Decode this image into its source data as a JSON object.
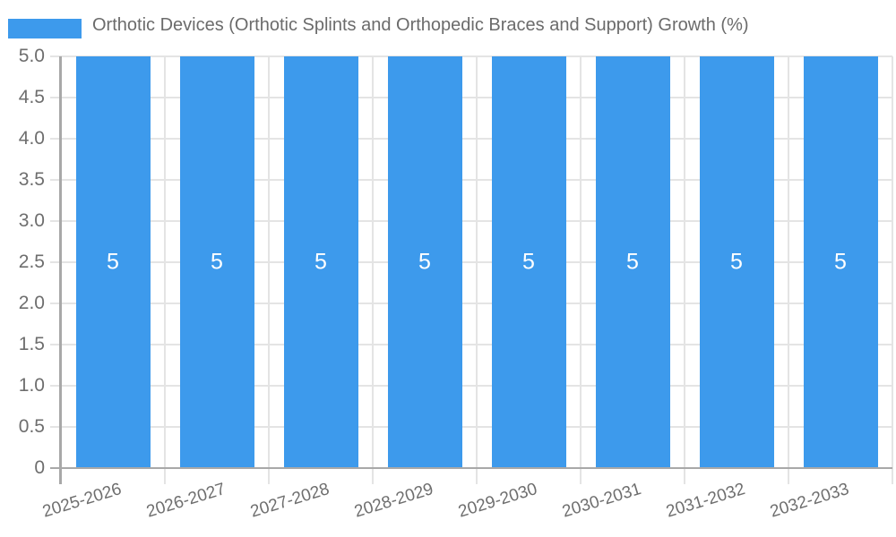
{
  "chart_data": {
    "type": "bar",
    "title": "Orthotic Devices (Orthotic Splints and Orthopedic Braces and Support) Growth (%)",
    "categories": [
      "2025-2026",
      "2026-2027",
      "2027-2028",
      "2028-2029",
      "2029-2030",
      "2030-2031",
      "2031-2032",
      "2032-2033"
    ],
    "series": [
      {
        "name": "Orthotic Devices (Orthotic Splints and Orthopedic Braces and Support) Growth (%)",
        "values": [
          5,
          5,
          5,
          5,
          5,
          5,
          5,
          5
        ],
        "value_labels": [
          "5",
          "5",
          "5",
          "5",
          "5",
          "5",
          "5",
          "5"
        ]
      }
    ],
    "xlabel": "",
    "ylabel": "",
    "ylim": [
      0,
      5
    ],
    "ytick_step": 0.5,
    "ytick_labels": [
      "5.0",
      "4.5",
      "4.0",
      "3.5",
      "3.0",
      "2.5",
      "2.0",
      "1.5",
      "1.0",
      "0.5",
      "0"
    ],
    "grid": "on",
    "legend_position": "top",
    "colors": {
      "bar": "#3d9aec",
      "grid": "#e4e4e4",
      "axis": "#a8a8a8",
      "tick_text": "#6e6e6e",
      "legend_text": "#6b6b6b",
      "value_label_text": "#ffffff",
      "background": "#ffffff"
    }
  }
}
